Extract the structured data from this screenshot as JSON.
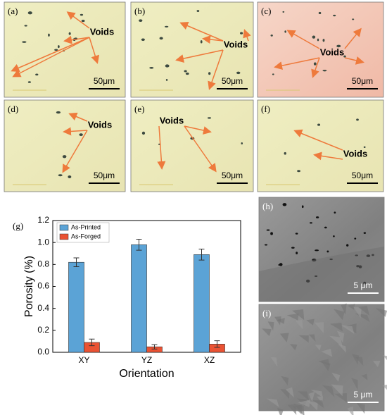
{
  "panels": [
    {
      "label": "(a)",
      "annotation": "Voids",
      "scale": "50μm"
    },
    {
      "label": "(b)",
      "annotation": "Voids",
      "scale": "50μm"
    },
    {
      "label": "(c)",
      "annotation": "Voids",
      "scale": "50μm"
    },
    {
      "label": "(d)",
      "annotation": "Voids",
      "scale": "50μm"
    },
    {
      "label": "(e)",
      "annotation": "Voids",
      "scale": "50μm"
    },
    {
      "label": "(f)",
      "annotation": "Voids",
      "scale": "50μm"
    },
    {
      "label": "(h)",
      "scale": "5 μm"
    },
    {
      "label": "(i)",
      "scale": "5 μm"
    }
  ],
  "chart_data": {
    "type": "bar",
    "panel_label": "(g)",
    "x_label": "Orientation",
    "y_label": "Porosity (%)",
    "categories": [
      "XY",
      "YZ",
      "XZ"
    ],
    "series": [
      {
        "name": "As-Printed",
        "color": "#5ba3d6",
        "values": [
          0.82,
          0.98,
          0.89
        ],
        "errors": [
          0.04,
          0.05,
          0.05
        ]
      },
      {
        "name": "As-Forged",
        "color": "#ea5233",
        "values": [
          0.09,
          0.05,
          0.075
        ],
        "errors": [
          0.03,
          0.02,
          0.03
        ]
      }
    ],
    "ylim": [
      0,
      1.2
    ],
    "yticks": [
      {
        "value": 0,
        "label": "0.0"
      },
      0.2,
      0.4,
      0.6,
      0.8,
      {
        "value": 1,
        "label": "1.0"
      },
      1.2
    ],
    "legend": "upper-left"
  }
}
